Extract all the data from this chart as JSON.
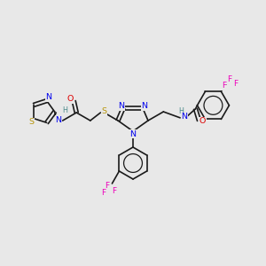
{
  "bg": "#e8e8e8",
  "bc": "#1a1a1a",
  "nc": "#0000ee",
  "sc": "#b8960c",
  "oc": "#dd0000",
  "fc": "#ee00bb",
  "hc": "#4a8a8a",
  "lw": 1.2,
  "fs": 6.8,
  "xlim": [
    0,
    300
  ],
  "ylim": [
    0,
    300
  ]
}
